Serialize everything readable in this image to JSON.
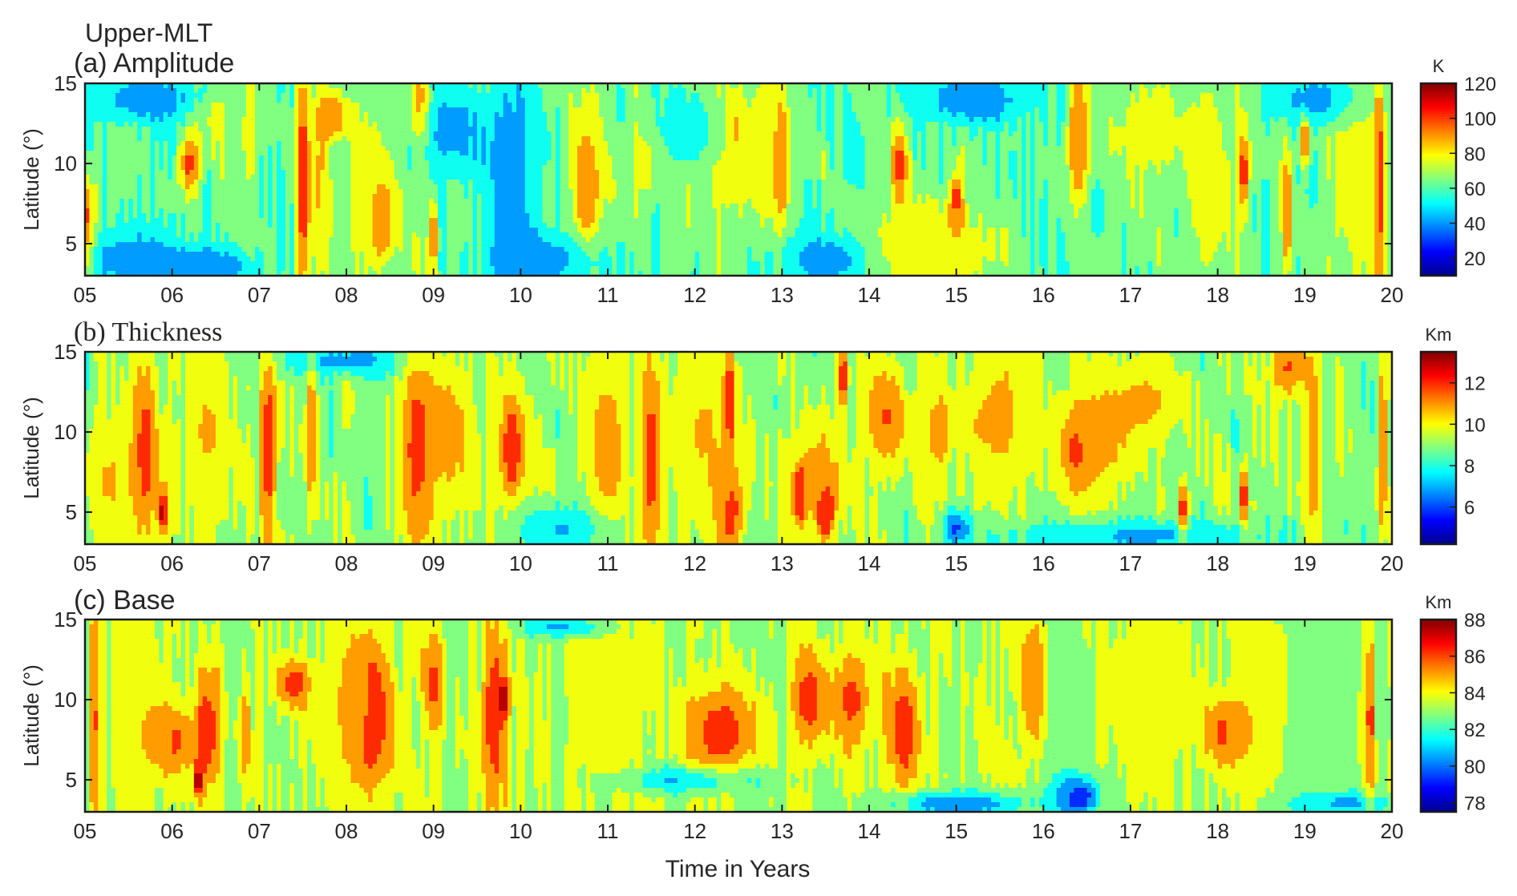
{
  "figure": {
    "title": "Upper-MLT",
    "xlabel": "Time in Years"
  },
  "colors": {
    "jet": [
      "#00008f",
      "#0000ff",
      "#0080ff",
      "#00ffff",
      "#80ff80",
      "#ffff00",
      "#ff8000",
      "#ff0000",
      "#800000"
    ],
    "frame": "#1a1a1a"
  },
  "chart_data": [
    {
      "type": "heatmap",
      "panel_label": "(a) Amplitude",
      "ylabel": "Latitude (°)",
      "x_ticks": [
        "05",
        "06",
        "07",
        "08",
        "09",
        "10",
        "11",
        "12",
        "13",
        "14",
        "15",
        "16",
        "17",
        "18",
        "19",
        "20"
      ],
      "y_ticks": [
        5,
        10,
        15
      ],
      "xlim": [
        2005,
        2020
      ],
      "ylim": [
        3,
        15
      ],
      "colorbar": {
        "unit": "K",
        "ticks": [
          20,
          40,
          60,
          80,
          100,
          120
        ],
        "range": [
          10,
          120
        ]
      },
      "value_range_est": [
        20,
        110
      ],
      "base_level": 62,
      "features": [
        {
          "t": 2005.0,
          "lat": 6,
          "value": 105,
          "dt": 0.1,
          "dlat": 3
        },
        {
          "t": 2005.5,
          "lat": 4,
          "value": 40,
          "dt": 0.6,
          "dlat": 2
        },
        {
          "t": 2005.7,
          "lat": 14,
          "value": 38,
          "dt": 0.6,
          "dlat": 1.5
        },
        {
          "t": 2006.2,
          "lat": 10,
          "value": 100,
          "dt": 0.12,
          "dlat": 2
        },
        {
          "t": 2006.4,
          "lat": 3.5,
          "value": 35,
          "dt": 0.5,
          "dlat": 1.2
        },
        {
          "t": 2006.5,
          "lat": 13,
          "value": 78,
          "dt": 0.15,
          "dlat": 2
        },
        {
          "t": 2006.9,
          "lat": 12,
          "value": 80,
          "dt": 0.1,
          "dlat": 3
        },
        {
          "t": 2007.5,
          "lat": 9,
          "value": 105,
          "dt": 0.08,
          "dlat": 8
        },
        {
          "t": 2007.7,
          "lat": 9,
          "value": 84,
          "dt": 0.12,
          "dlat": 7
        },
        {
          "t": 2007.85,
          "lat": 13,
          "value": 98,
          "dt": 0.15,
          "dlat": 1.2
        },
        {
          "t": 2008.4,
          "lat": 6.5,
          "value": 102,
          "dt": 0.1,
          "dlat": 2
        },
        {
          "t": 2008.3,
          "lat": 8,
          "value": 78,
          "dt": 0.4,
          "dlat": 6
        },
        {
          "t": 2008.85,
          "lat": 13.5,
          "value": 100,
          "dt": 0.1,
          "dlat": 2
        },
        {
          "t": 2009.0,
          "lat": 5.5,
          "value": 100,
          "dt": 0.05,
          "dlat": 2.5
        },
        {
          "t": 2009.2,
          "lat": 12,
          "value": 42,
          "dt": 0.4,
          "dlat": 3
        },
        {
          "t": 2009.9,
          "lat": 8,
          "value": 38,
          "dt": 0.3,
          "dlat": 8
        },
        {
          "t": 2010.3,
          "lat": 4,
          "value": 40,
          "dt": 0.6,
          "dlat": 1.5
        },
        {
          "t": 2010.75,
          "lat": 8.5,
          "value": 100,
          "dt": 0.1,
          "dlat": 2.5
        },
        {
          "t": 2010.8,
          "lat": 10,
          "value": 80,
          "dt": 0.25,
          "dlat": 6
        },
        {
          "t": 2011.4,
          "lat": 10,
          "value": 78,
          "dt": 0.2,
          "dlat": 3
        },
        {
          "t": 2012.0,
          "lat": 12,
          "value": 42,
          "dt": 0.4,
          "dlat": 2
        },
        {
          "t": 2012.4,
          "lat": 11,
          "value": 80,
          "dt": 0.4,
          "dlat": 5
        },
        {
          "t": 2012.45,
          "lat": 12,
          "value": 100,
          "dt": 0.08,
          "dlat": 1.5
        },
        {
          "t": 2012.9,
          "lat": 11,
          "value": 80,
          "dt": 0.2,
          "dlat": 5
        },
        {
          "t": 2013.0,
          "lat": 10,
          "value": 102,
          "dt": 0.07,
          "dlat": 3
        },
        {
          "t": 2013.5,
          "lat": 4,
          "value": 38,
          "dt": 0.5,
          "dlat": 1.5
        },
        {
          "t": 2014.35,
          "lat": 10,
          "value": 100,
          "dt": 0.1,
          "dlat": 2.5
        },
        {
          "t": 2014.5,
          "lat": 5,
          "value": 80,
          "dt": 0.5,
          "dlat": 3
        },
        {
          "t": 2015.0,
          "lat": 7.5,
          "value": 102,
          "dt": 0.08,
          "dlat": 2
        },
        {
          "t": 2015.0,
          "lat": 4.5,
          "value": 78,
          "dt": 0.5,
          "dlat": 2
        },
        {
          "t": 2015.2,
          "lat": 14,
          "value": 35,
          "dt": 0.6,
          "dlat": 1.5
        },
        {
          "t": 2016.4,
          "lat": 12,
          "value": 102,
          "dt": 0.08,
          "dlat": 3
        },
        {
          "t": 2016.4,
          "lat": 11,
          "value": 80,
          "dt": 0.15,
          "dlat": 4
        },
        {
          "t": 2017.2,
          "lat": 12,
          "value": 78,
          "dt": 0.4,
          "dlat": 3
        },
        {
          "t": 2017.9,
          "lat": 9,
          "value": 80,
          "dt": 0.3,
          "dlat": 7
        },
        {
          "t": 2018.3,
          "lat": 9.5,
          "value": 102,
          "dt": 0.06,
          "dlat": 2.5
        },
        {
          "t": 2018.8,
          "lat": 7,
          "value": 100,
          "dt": 0.06,
          "dlat": 4
        },
        {
          "t": 2019.0,
          "lat": 11.5,
          "value": 100,
          "dt": 0.06,
          "dlat": 1.5
        },
        {
          "t": 2019.6,
          "lat": 9,
          "value": 82,
          "dt": 0.3,
          "dlat": 7
        },
        {
          "t": 2019.85,
          "lat": 9,
          "value": 105,
          "dt": 0.05,
          "dlat": 7
        },
        {
          "t": 2019.2,
          "lat": 14,
          "value": 38,
          "dt": 0.5,
          "dlat": 1.5
        }
      ]
    },
    {
      "type": "heatmap",
      "panel_label": "(b) Thickness",
      "ylabel": "Latitude (°)",
      "x_ticks": [
        "05",
        "06",
        "07",
        "08",
        "09",
        "10",
        "11",
        "12",
        "13",
        "14",
        "15",
        "16",
        "17",
        "18",
        "19",
        "20"
      ],
      "y_ticks": [
        5,
        10,
        15
      ],
      "xlim": [
        2005,
        2020
      ],
      "ylim": [
        3,
        15
      ],
      "colorbar": {
        "unit": "Km",
        "ticks": [
          6,
          8,
          10,
          12
        ],
        "range": [
          4.2,
          13.5
        ]
      },
      "value_range_est": [
        5,
        13
      ],
      "base_level": 9.0,
      "features": [
        {
          "t": 2005.3,
          "lat": 7,
          "value": 10.5,
          "dt": 0.3,
          "dlat": 4
        },
        {
          "t": 2005.7,
          "lat": 9,
          "value": 11.8,
          "dt": 0.15,
          "dlat": 6
        },
        {
          "t": 2005.9,
          "lat": 5,
          "value": 12.8,
          "dt": 0.06,
          "dlat": 1.5
        },
        {
          "t": 2006.4,
          "lat": 10,
          "value": 10.5,
          "dt": 0.3,
          "dlat": 5
        },
        {
          "t": 2007.1,
          "lat": 9,
          "value": 12.0,
          "dt": 0.1,
          "dlat": 7
        },
        {
          "t": 2007.6,
          "lat": 10,
          "value": 11.5,
          "dt": 0.06,
          "dlat": 5
        },
        {
          "t": 2008.0,
          "lat": 14.5,
          "value": 7.0,
          "dt": 0.8,
          "dlat": 1
        },
        {
          "t": 2008.8,
          "lat": 9,
          "value": 11.8,
          "dt": 0.2,
          "dlat": 7
        },
        {
          "t": 2009.2,
          "lat": 10,
          "value": 10.8,
          "dt": 0.25,
          "dlat": 5
        },
        {
          "t": 2009.9,
          "lat": 9,
          "value": 12.5,
          "dt": 0.08,
          "dlat": 2
        },
        {
          "t": 2009.9,
          "lat": 9,
          "value": 11.0,
          "dt": 0.25,
          "dlat": 4
        },
        {
          "t": 2010.5,
          "lat": 4,
          "value": 7.2,
          "dt": 0.6,
          "dlat": 1.5
        },
        {
          "t": 2011.0,
          "lat": 9,
          "value": 11.0,
          "dt": 0.25,
          "dlat": 6
        },
        {
          "t": 2011.5,
          "lat": 8,
          "value": 11.8,
          "dt": 0.12,
          "dlat": 7
        },
        {
          "t": 2012.1,
          "lat": 10,
          "value": 10.5,
          "dt": 0.4,
          "dlat": 6
        },
        {
          "t": 2012.4,
          "lat": 5,
          "value": 11.8,
          "dt": 0.15,
          "dlat": 3
        },
        {
          "t": 2012.4,
          "lat": 12,
          "value": 12.5,
          "dt": 0.05,
          "dlat": 3
        },
        {
          "t": 2013.2,
          "lat": 6,
          "value": 12.8,
          "dt": 0.06,
          "dlat": 1.5
        },
        {
          "t": 2013.5,
          "lat": 5,
          "value": 12.5,
          "dt": 0.08,
          "dlat": 1.5
        },
        {
          "t": 2013.4,
          "lat": 7,
          "value": 11.0,
          "dt": 0.35,
          "dlat": 4
        },
        {
          "t": 2013.7,
          "lat": 13.5,
          "value": 12.5,
          "dt": 0.06,
          "dlat": 2
        },
        {
          "t": 2014.2,
          "lat": 11,
          "value": 11.5,
          "dt": 0.25,
          "dlat": 3
        },
        {
          "t": 2014.8,
          "lat": 10,
          "value": 11.0,
          "dt": 0.15,
          "dlat": 3
        },
        {
          "t": 2015.0,
          "lat": 4,
          "value": 6.0,
          "dt": 0.15,
          "dlat": 1
        },
        {
          "t": 2015.5,
          "lat": 11,
          "value": 10.8,
          "dt": 0.4,
          "dlat": 5
        },
        {
          "t": 2016.4,
          "lat": 9,
          "value": 12.0,
          "dt": 0.15,
          "dlat": 2
        },
        {
          "t": 2016.6,
          "lat": 9.5,
          "value": 10.8,
          "dt": 0.4,
          "dlat": 4
        },
        {
          "t": 2017.2,
          "lat": 12,
          "value": 10.5,
          "dt": 0.4,
          "dlat": 3
        },
        {
          "t": 2017.6,
          "lat": 5,
          "value": 12.5,
          "dt": 0.06,
          "dlat": 2
        },
        {
          "t": 2018.3,
          "lat": 6,
          "value": 12.5,
          "dt": 0.05,
          "dlat": 2
        },
        {
          "t": 2018.8,
          "lat": 14,
          "value": 11.5,
          "dt": 0.2,
          "dlat": 2
        },
        {
          "t": 2019.1,
          "lat": 9,
          "value": 11.2,
          "dt": 0.1,
          "dlat": 6
        },
        {
          "t": 2019.9,
          "lat": 9,
          "value": 12.0,
          "dt": 0.05,
          "dlat": 5
        },
        {
          "t": 2017.0,
          "lat": 3.5,
          "value": 7.0,
          "dt": 1.5,
          "dlat": 1
        }
      ]
    },
    {
      "type": "heatmap",
      "panel_label": "(c) Base",
      "ylabel": "Latitude (°)",
      "x_ticks": [
        "05",
        "06",
        "07",
        "08",
        "09",
        "10",
        "11",
        "12",
        "13",
        "14",
        "15",
        "16",
        "17",
        "18",
        "19",
        "20"
      ],
      "y_ticks": [
        5,
        10,
        15
      ],
      "xlim": [
        2005,
        2020
      ],
      "ylim": [
        3,
        15
      ],
      "colorbar": {
        "unit": "Km",
        "ticks": [
          78,
          80,
          82,
          84,
          86,
          88
        ],
        "range": [
          77.5,
          88
        ]
      },
      "value_range_est": [
        78,
        88
      ],
      "base_level": 83.2,
      "features": [
        {
          "t": 2005.1,
          "lat": 9,
          "value": 86.5,
          "dt": 0.04,
          "dlat": 7
        },
        {
          "t": 2005.6,
          "lat": 10,
          "value": 84.3,
          "dt": 0.35,
          "dlat": 6
        },
        {
          "t": 2006.0,
          "lat": 7.5,
          "value": 86.0,
          "dt": 0.25,
          "dlat": 2
        },
        {
          "t": 2006.4,
          "lat": 8,
          "value": 86.5,
          "dt": 0.15,
          "dlat": 4
        },
        {
          "t": 2006.3,
          "lat": 5,
          "value": 87.2,
          "dt": 0.05,
          "dlat": 1
        },
        {
          "t": 2006.85,
          "lat": 8,
          "value": 86.0,
          "dt": 0.04,
          "dlat": 4
        },
        {
          "t": 2007.4,
          "lat": 11,
          "value": 86.3,
          "dt": 0.2,
          "dlat": 1.5
        },
        {
          "t": 2008.0,
          "lat": 10,
          "value": 84.3,
          "dt": 0.3,
          "dlat": 6
        },
        {
          "t": 2008.3,
          "lat": 9,
          "value": 86.5,
          "dt": 0.25,
          "dlat": 5
        },
        {
          "t": 2009.0,
          "lat": 11,
          "value": 86.0,
          "dt": 0.12,
          "dlat": 3
        },
        {
          "t": 2009.7,
          "lat": 9,
          "value": 86.5,
          "dt": 0.15,
          "dlat": 6
        },
        {
          "t": 2009.8,
          "lat": 10,
          "value": 87.5,
          "dt": 0.05,
          "dlat": 1
        },
        {
          "t": 2010.5,
          "lat": 14.5,
          "value": 80.5,
          "dt": 0.5,
          "dlat": 0.6
        },
        {
          "t": 2011.0,
          "lat": 10,
          "value": 84.3,
          "dt": 0.4,
          "dlat": 6
        },
        {
          "t": 2012.3,
          "lat": 8,
          "value": 86.5,
          "dt": 0.4,
          "dlat": 3
        },
        {
          "t": 2012.0,
          "lat": 5,
          "value": 80.5,
          "dt": 0.8,
          "dlat": 0.8
        },
        {
          "t": 2013.3,
          "lat": 10,
          "value": 86.3,
          "dt": 0.2,
          "dlat": 3
        },
        {
          "t": 2013.8,
          "lat": 10,
          "value": 86.0,
          "dt": 0.25,
          "dlat": 3
        },
        {
          "t": 2014.4,
          "lat": 8,
          "value": 86.5,
          "dt": 0.2,
          "dlat": 4
        },
        {
          "t": 2015.0,
          "lat": 3.5,
          "value": 80.0,
          "dt": 0.8,
          "dlat": 0.8
        },
        {
          "t": 2015.9,
          "lat": 11,
          "value": 86.5,
          "dt": 0.15,
          "dlat": 4
        },
        {
          "t": 2016.2,
          "lat": 10,
          "value": 82.3,
          "dt": 0.3,
          "dlat": 6
        },
        {
          "t": 2016.4,
          "lat": 4,
          "value": 78.8,
          "dt": 0.25,
          "dlat": 1.2
        },
        {
          "t": 2017.2,
          "lat": 10,
          "value": 84.3,
          "dt": 0.5,
          "dlat": 6
        },
        {
          "t": 2018.1,
          "lat": 8,
          "value": 86.0,
          "dt": 0.25,
          "dlat": 2
        },
        {
          "t": 2018.6,
          "lat": 10,
          "value": 84.3,
          "dt": 0.4,
          "dlat": 6
        },
        {
          "t": 2019.0,
          "lat": 9,
          "value": 82.3,
          "dt": 0.4,
          "dlat": 7
        },
        {
          "t": 2019.75,
          "lat": 9,
          "value": 86.5,
          "dt": 0.05,
          "dlat": 6
        },
        {
          "t": 2019.4,
          "lat": 3.5,
          "value": 80.5,
          "dt": 0.6,
          "dlat": 0.6
        }
      ]
    }
  ]
}
